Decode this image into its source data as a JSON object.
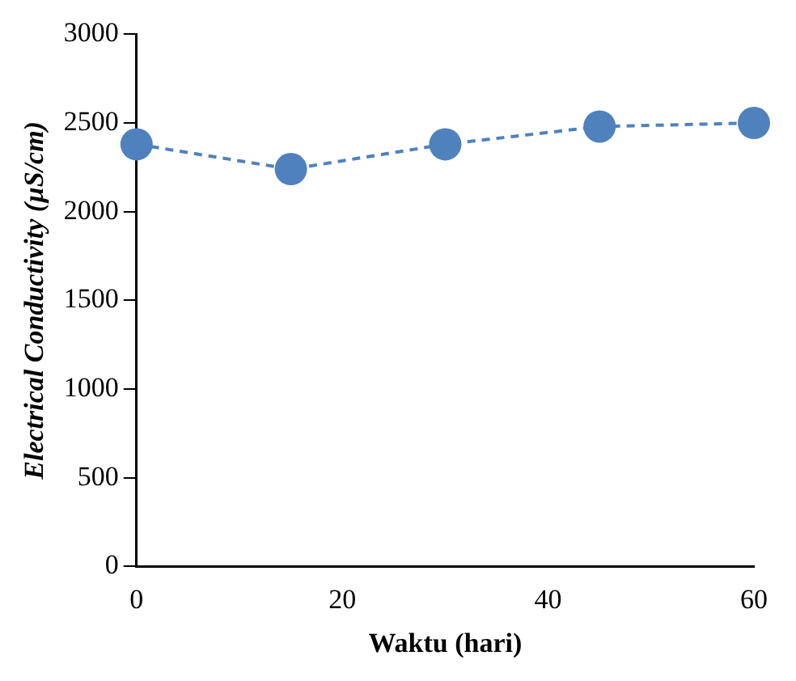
{
  "chart_data": {
    "type": "line",
    "xlabel": "Waktu (hari)",
    "ylabel": "Electrical Conductivity (µS/cm)",
    "x": [
      0,
      15,
      30,
      45,
      60
    ],
    "series": [
      {
        "color": "#4f81bd",
        "values": [
          2380,
          2240,
          2380,
          2480,
          2500
        ]
      }
    ],
    "xlim": [
      0,
      60
    ],
    "xticks": [
      0,
      20,
      40,
      60
    ],
    "ylim": [
      0,
      3000
    ],
    "yticks": [
      0,
      500,
      1000,
      1500,
      2000,
      2500,
      3000
    ],
    "grid": false,
    "legend": false,
    "marker": "circle",
    "line_style": "dashed"
  }
}
